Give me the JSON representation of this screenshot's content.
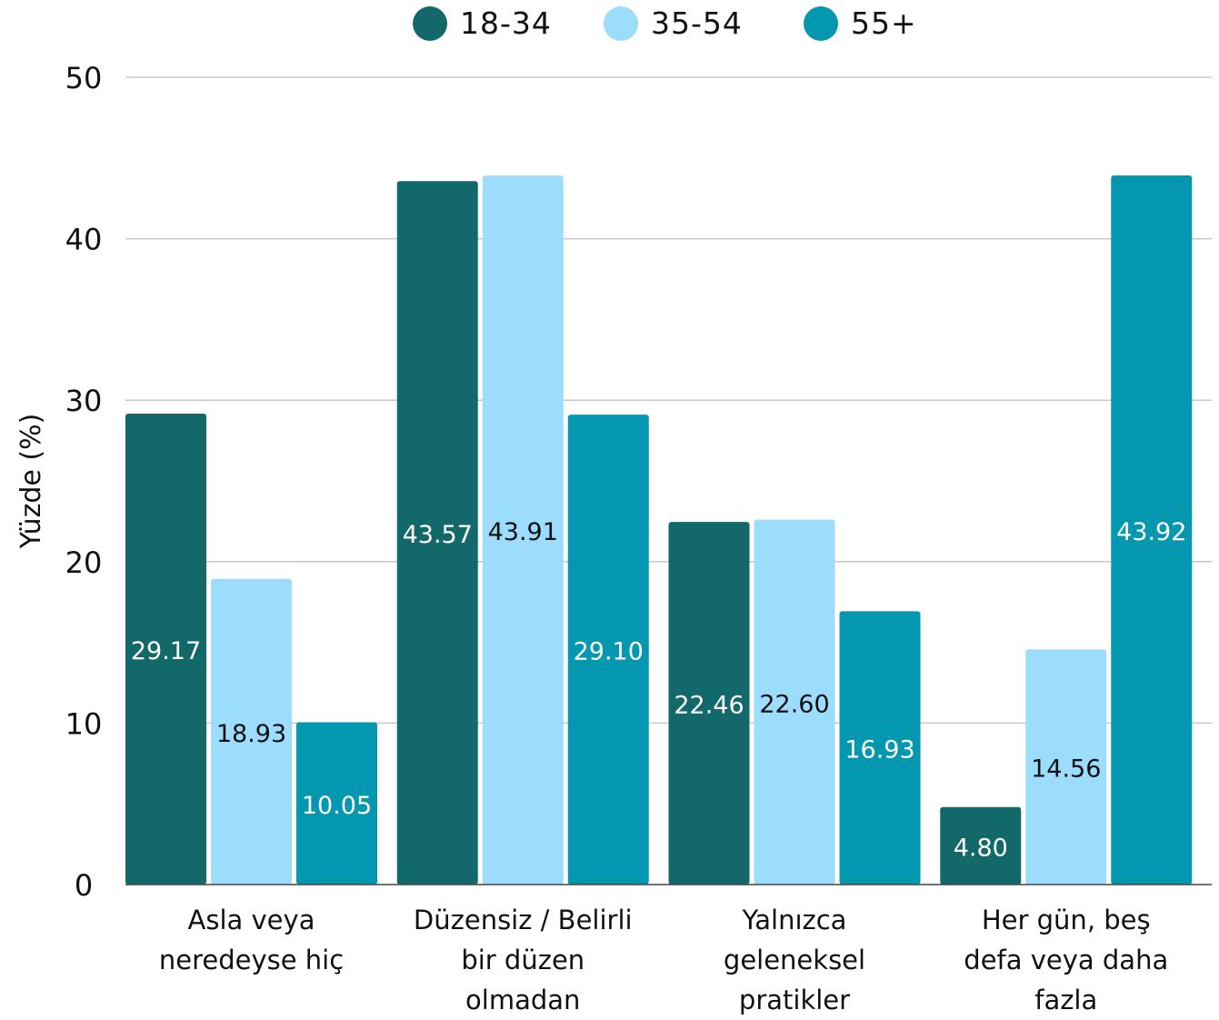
{
  "chart_data": {
    "type": "bar",
    "title": "",
    "xlabel": "",
    "ylabel": "Yüzde (%)",
    "ylim": [
      0,
      50
    ],
    "yticks": [
      0,
      10,
      20,
      30,
      40,
      50
    ],
    "grid": true,
    "legend_position": "top-center",
    "categories": [
      [
        "Asla veya",
        "neredeyse hiç"
      ],
      [
        "Düzensiz / Belirli",
        "bir düzen",
        "olmadan"
      ],
      [
        "Yalnızca",
        "geleneksel",
        "pratikler"
      ],
      [
        "Her gün, beş",
        "defa veya daha",
        "fazla"
      ]
    ],
    "series": [
      {
        "name": "18-34",
        "color": "#13696a",
        "label_color": "#ffffff",
        "values": [
          29.17,
          43.57,
          22.46,
          4.8
        ]
      },
      {
        "name": "35-54",
        "color": "#9cdcfd",
        "label_color": "#111111",
        "values": [
          18.93,
          43.91,
          22.6,
          14.56
        ]
      },
      {
        "name": "55+",
        "color": "#0397b0",
        "label_color": "#ffffff",
        "values": [
          10.05,
          29.1,
          16.93,
          43.92
        ]
      }
    ]
  }
}
